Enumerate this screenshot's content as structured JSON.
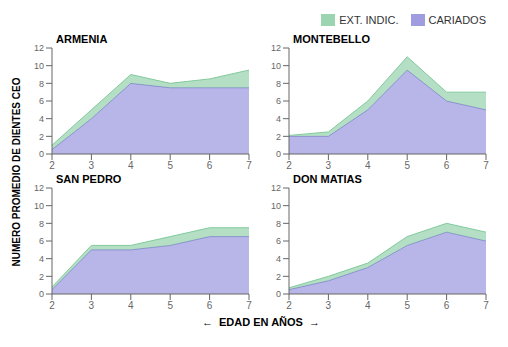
{
  "chart_data": [
    {
      "type": "area",
      "stacked": true,
      "title": "ARMENIA",
      "x": [
        2,
        3,
        4,
        5,
        6,
        7
      ],
      "series": [
        {
          "name": "CARIADOS",
          "color": "#8884d8",
          "values": [
            0.5,
            4.0,
            8.0,
            7.5,
            7.5,
            7.5
          ]
        },
        {
          "name": "EXT. INDIC.",
          "color": "#82ca9d",
          "values": [
            0.5,
            1.0,
            1.0,
            0.5,
            1.0,
            2.0
          ]
        }
      ],
      "xlim": [
        2,
        7
      ],
      "xticks": [
        2,
        3,
        4,
        5,
        6,
        7
      ],
      "ylim": [
        0,
        12
      ],
      "yticks": [
        0,
        2,
        4,
        6,
        8,
        10,
        12
      ]
    },
    {
      "type": "area",
      "stacked": true,
      "title": "MONTEBELLO",
      "x": [
        2,
        3,
        4,
        5,
        6,
        7
      ],
      "series": [
        {
          "name": "CARIADOS",
          "color": "#8884d8",
          "values": [
            2.0,
            2.0,
            5.0,
            9.5,
            6.0,
            5.0
          ]
        },
        {
          "name": "EXT. INDIC.",
          "color": "#82ca9d",
          "values": [
            0.1,
            0.5,
            1.0,
            1.5,
            1.0,
            2.0
          ]
        }
      ],
      "xlim": [
        2,
        7
      ],
      "xticks": [
        2,
        3,
        4,
        5,
        6,
        7
      ],
      "ylim": [
        0,
        12
      ],
      "yticks": [
        0,
        2,
        4,
        6,
        8,
        10,
        12
      ],
      "legend": "upper right"
    },
    {
      "type": "area",
      "stacked": true,
      "title": "SAN PEDRO",
      "x": [
        2,
        3,
        4,
        5,
        6,
        7
      ],
      "series": [
        {
          "name": "CARIADOS",
          "color": "#8884d8",
          "values": [
            0.5,
            5.0,
            5.0,
            5.5,
            6.5,
            6.5
          ]
        },
        {
          "name": "EXT. INDIC.",
          "color": "#82ca9d",
          "values": [
            0.3,
            0.5,
            0.5,
            1.0,
            1.0,
            1.0
          ]
        }
      ],
      "xlim": [
        2,
        7
      ],
      "xticks": [
        2,
        3,
        4,
        5,
        6,
        7
      ],
      "ylim": [
        0,
        12
      ],
      "yticks": [
        0,
        2,
        4,
        6,
        8,
        10,
        12
      ]
    },
    {
      "type": "area",
      "stacked": true,
      "title": "DON MATIAS",
      "x": [
        2,
        3,
        4,
        5,
        6,
        7
      ],
      "series": [
        {
          "name": "CARIADOS",
          "color": "#8884d8",
          "values": [
            0.5,
            1.5,
            3.0,
            5.5,
            7.0,
            6.0
          ]
        },
        {
          "name": "EXT. INDIC.",
          "color": "#82ca9d",
          "values": [
            0.2,
            0.5,
            0.5,
            1.0,
            1.0,
            1.0
          ]
        }
      ],
      "xlim": [
        2,
        7
      ],
      "xticks": [
        2,
        3,
        4,
        5,
        6,
        7
      ],
      "ylim": [
        0,
        12
      ],
      "yticks": [
        0,
        2,
        4,
        6,
        8,
        10,
        12
      ]
    }
  ],
  "xlabel": "←  EDAD EN AÑOS  →",
  "ylabel": "NUMERO PROMEDIO DE DIENTES CEO"
}
